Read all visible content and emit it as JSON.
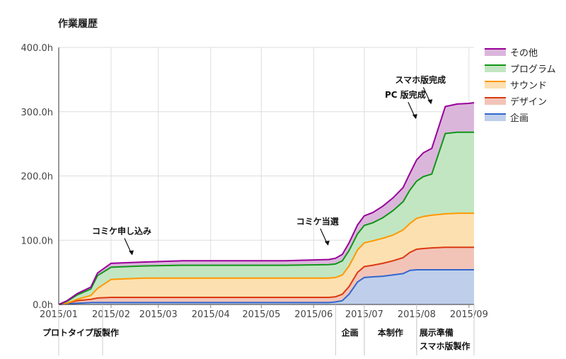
{
  "chart_data": {
    "type": "area",
    "title": "作業履歴",
    "xlabel": "",
    "ylabel": "",
    "ylim": [
      0,
      400
    ],
    "y_ticks": [
      "0.0h",
      "100.0h",
      "200.0h",
      "300.0h",
      "400.0h"
    ],
    "y_tick_values": [
      0,
      100,
      200,
      300,
      400
    ],
    "x_ticks": [
      "2015/01",
      "2015/02",
      "2015/03",
      "2015/04",
      "2015/05",
      "2015/06",
      "2015/07",
      "2015/08",
      "2015/09"
    ],
    "x_tick_values": [
      "2015-01-01",
      "2015-02-01",
      "2015-03-01",
      "2015-04-01",
      "2015-05-01",
      "2015-06-01",
      "2015-07-01",
      "2015-08-01",
      "2015-09-01"
    ],
    "stacked": true,
    "grid": true,
    "legend_position": "right",
    "x": [
      "2015-01-01",
      "2015-01-06",
      "2015-01-12",
      "2015-01-20",
      "2015-01-24",
      "2015-02-01",
      "2015-02-10",
      "2015-02-20",
      "2015-03-15",
      "2015-04-15",
      "2015-05-15",
      "2015-06-10",
      "2015-06-14",
      "2015-06-18",
      "2015-06-22",
      "2015-06-27",
      "2015-07-01",
      "2015-07-06",
      "2015-07-12",
      "2015-07-18",
      "2015-07-24",
      "2015-07-28",
      "2015-08-01",
      "2015-08-05",
      "2015-08-10",
      "2015-08-18",
      "2015-08-25",
      "2015-09-01",
      "2015-09-04"
    ],
    "series": [
      {
        "name": "企画",
        "color": "#3366cc",
        "fill": "#bfcfeb",
        "values": [
          0,
          1,
          2,
          3,
          3,
          3,
          3,
          3,
          3,
          3,
          3,
          3,
          4,
          6,
          16,
          35,
          42,
          43,
          44,
          46,
          48,
          53,
          54,
          54,
          54,
          54,
          54,
          54,
          54
        ]
      },
      {
        "name": "デザイン",
        "color": "#dc3912",
        "fill": "#f2c4b8",
        "values": [
          0,
          1,
          4,
          5,
          7,
          8,
          8,
          8,
          8,
          8,
          8,
          8,
          8,
          10,
          12,
          15,
          17,
          18,
          20,
          22,
          25,
          28,
          32,
          33,
          34,
          35,
          35,
          35,
          35
        ]
      },
      {
        "name": "サウンド",
        "color": "#ff9900",
        "fill": "#fde0b0",
        "values": [
          0,
          0,
          2,
          6,
          15,
          28,
          29,
          30,
          30,
          30,
          30,
          30,
          30,
          30,
          32,
          35,
          37,
          38,
          39,
          40,
          43,
          45,
          48,
          50,
          51,
          52,
          53,
          53,
          53
        ]
      },
      {
        "name": "プログラム",
        "color": "#109618",
        "fill": "#c2e6c2",
        "values": [
          0,
          3,
          7,
          10,
          20,
          19,
          19,
          19,
          20,
          20,
          20,
          21,
          21,
          22,
          24,
          25,
          27,
          28,
          32,
          38,
          44,
          52,
          58,
          62,
          64,
          125,
          126,
          126,
          126
        ]
      },
      {
        "name": "その他",
        "color": "#990099",
        "fill": "#dbb6db",
        "values": [
          0,
          1,
          2,
          3,
          4,
          6,
          6,
          6,
          7,
          7,
          7,
          8,
          9,
          10,
          12,
          14,
          15,
          16,
          18,
          20,
          22,
          26,
          33,
          37,
          40,
          42,
          44,
          45,
          46
        ]
      }
    ],
    "annotations": [
      {
        "text": "コミケ申し込み",
        "x": "2015-02-14",
        "y": 70
      },
      {
        "text": "コミケ当選",
        "x": "2015-06-10",
        "y": 85
      },
      {
        "text": "PC 版完成",
        "x": "2015-08-01",
        "y": 282
      },
      {
        "text": "スマホ版完成",
        "x": "2015-08-10",
        "y": 305
      }
    ],
    "phases": [
      {
        "lines": [
          "プロトタイプ版製作"
        ],
        "start": "2015-01-01",
        "end": "2015-01-27"
      },
      {
        "lines": [
          "企画"
        ],
        "start": "2015-06-14",
        "end": "2015-07-01"
      },
      {
        "lines": [
          "本制作"
        ],
        "start": "2015-07-01",
        "end": "2015-08-01"
      },
      {
        "lines": [
          "展示準備",
          "スマホ版製作"
        ],
        "start": "2015-08-01",
        "end": "2015-09-04"
      }
    ]
  }
}
